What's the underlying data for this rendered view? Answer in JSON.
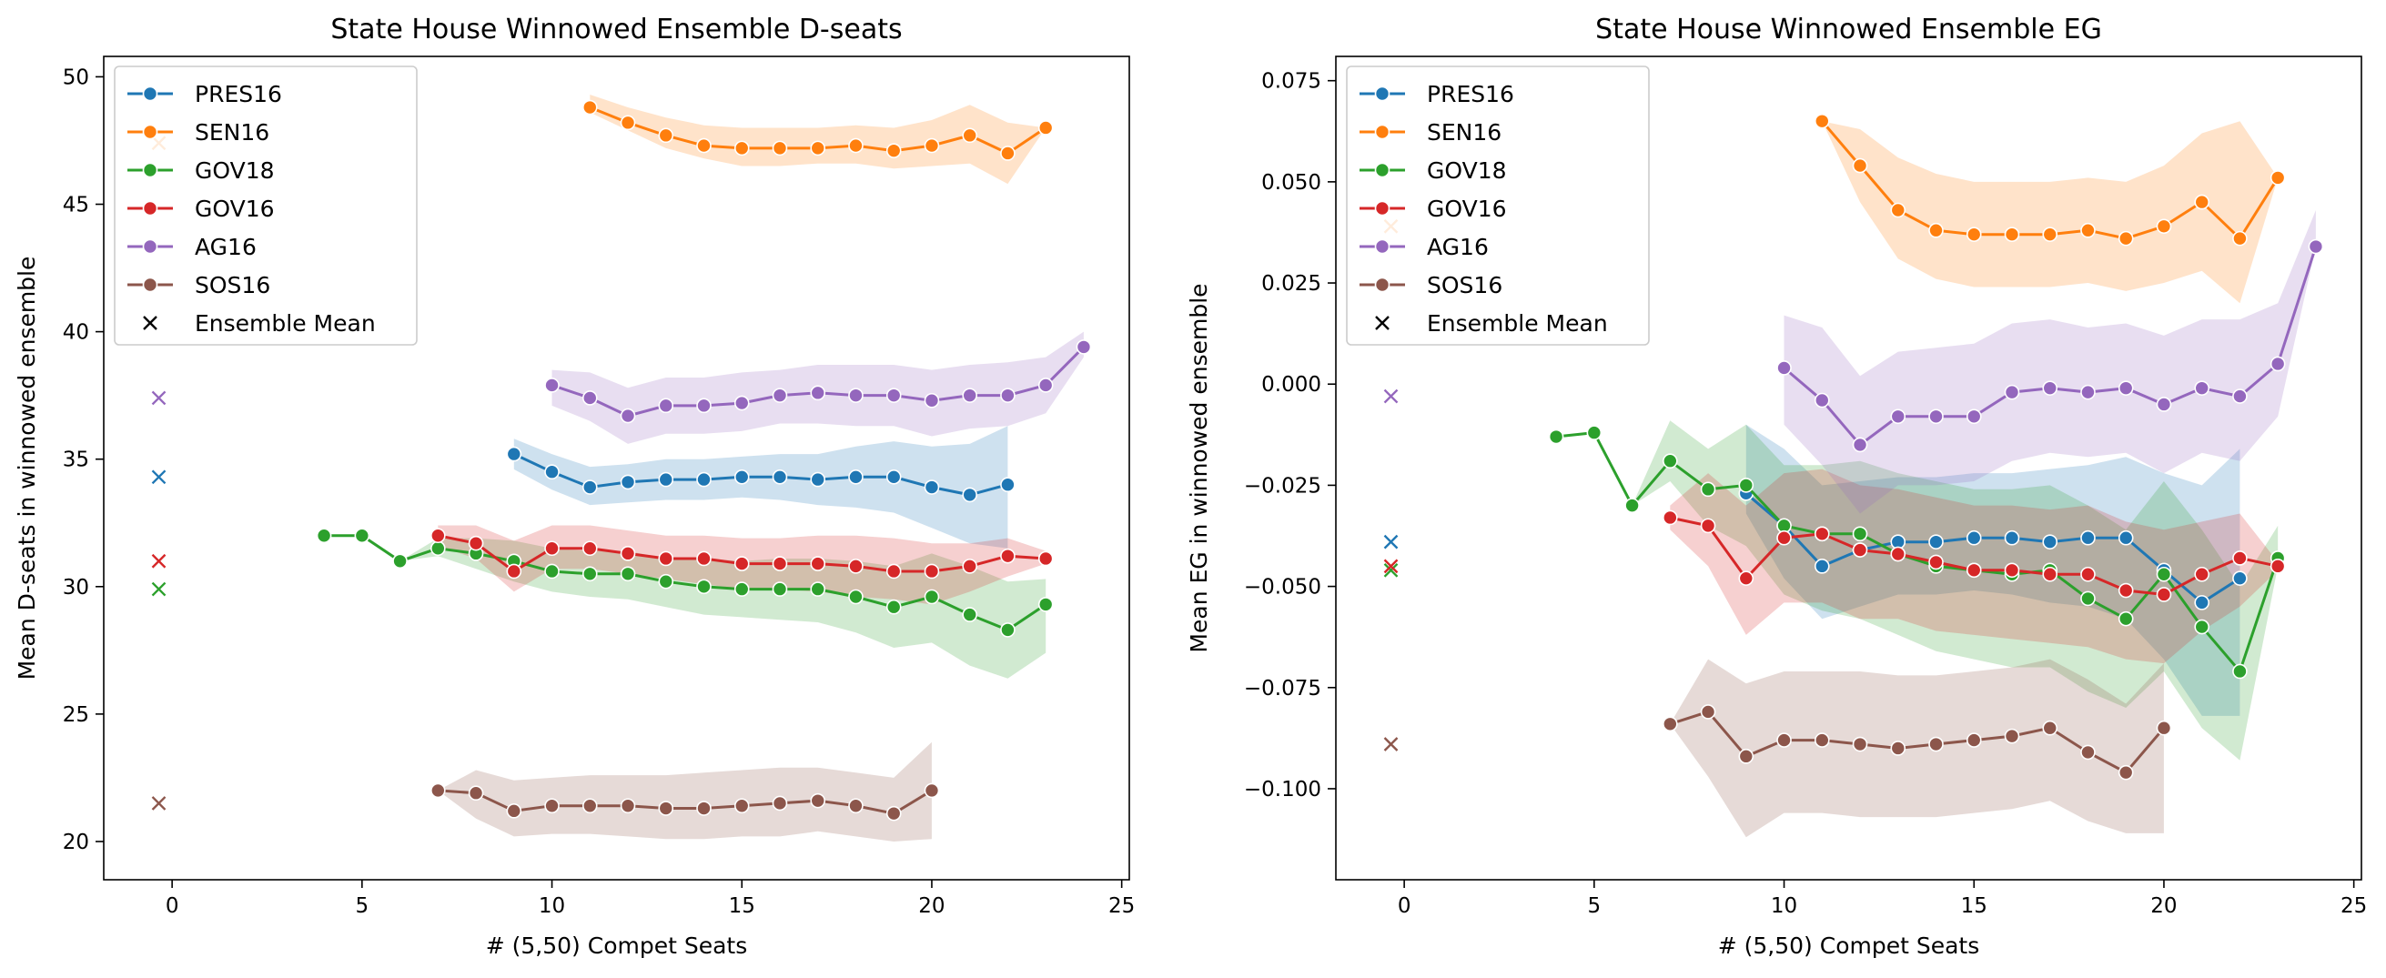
{
  "legend": {
    "ensemble_label": "Ensemble Mean"
  },
  "chart_data": [
    {
      "type": "line",
      "title": "State House Winnowed Ensemble D-seats",
      "xlabel": "# (5,50) Compet Seats",
      "ylabel": "Mean D-seats in winnowed ensemble",
      "xlim": [
        -1.8,
        25.2
      ],
      "ylim": [
        18.5,
        50.8
      ],
      "xticks": [
        "0",
        "5",
        "10",
        "15",
        "20",
        "25"
      ],
      "yticks": [
        "20",
        "25",
        "30",
        "35",
        "40",
        "45",
        "50"
      ],
      "legend_position": "upper left",
      "series": [
        {
          "name": "PRES16",
          "color": "#1f77b4",
          "x": [
            9,
            10,
            11,
            12,
            13,
            14,
            15,
            16,
            17,
            18,
            19,
            20,
            21,
            22
          ],
          "y": [
            35.2,
            34.5,
            33.9,
            34.1,
            34.2,
            34.2,
            34.3,
            34.3,
            34.2,
            34.3,
            34.3,
            33.9,
            33.6,
            34.0
          ],
          "band_lo": [
            34.6,
            33.8,
            33.2,
            33.3,
            33.4,
            33.4,
            33.5,
            33.4,
            33.2,
            33.1,
            32.9,
            32.3,
            31.7,
            31.5
          ],
          "band_hi": [
            35.8,
            35.2,
            34.7,
            34.8,
            35.0,
            35.0,
            35.1,
            35.2,
            35.2,
            35.5,
            35.7,
            35.5,
            35.6,
            36.3
          ],
          "ensemble_mean": 34.3
        },
        {
          "name": "SEN16",
          "color": "#ff7f0e",
          "x": [
            11,
            12,
            13,
            14,
            15,
            16,
            17,
            18,
            19,
            20,
            21,
            22,
            23
          ],
          "y": [
            48.8,
            48.2,
            47.7,
            47.3,
            47.2,
            47.2,
            47.2,
            47.3,
            47.1,
            47.3,
            47.7,
            47.0,
            48.0
          ],
          "band_lo": [
            48.6,
            47.9,
            47.2,
            46.8,
            46.5,
            46.5,
            46.6,
            46.6,
            46.4,
            46.5,
            46.6,
            45.8,
            48.0
          ],
          "band_hi": [
            49.3,
            48.8,
            48.4,
            48.1,
            48.0,
            48.0,
            48.0,
            48.1,
            48.0,
            48.3,
            48.9,
            48.2,
            48.0
          ],
          "ensemble_mean": 47.4
        },
        {
          "name": "GOV18",
          "color": "#2ca02c",
          "x": [
            4,
            5,
            6,
            7,
            8,
            9,
            10,
            11,
            12,
            13,
            14,
            15,
            16,
            17,
            18,
            19,
            20,
            21,
            22,
            23
          ],
          "y": [
            32.0,
            32.0,
            31.0,
            31.5,
            31.3,
            31.0,
            30.6,
            30.5,
            30.5,
            30.2,
            30.0,
            29.9,
            29.9,
            29.9,
            29.6,
            29.2,
            29.6,
            28.9,
            28.3,
            29.3
          ],
          "band_lo": [
            32.0,
            32.0,
            31.0,
            31.2,
            30.7,
            30.2,
            29.8,
            29.6,
            29.5,
            29.2,
            28.9,
            28.8,
            28.7,
            28.6,
            28.2,
            27.6,
            27.8,
            26.9,
            26.4,
            27.4
          ],
          "band_hi": [
            32.0,
            32.0,
            31.0,
            31.9,
            31.9,
            31.8,
            31.5,
            31.4,
            31.4,
            31.1,
            31.1,
            31.0,
            31.1,
            31.1,
            31.0,
            30.8,
            31.3,
            30.8,
            30.2,
            30.3
          ],
          "ensemble_mean": 29.9
        },
        {
          "name": "GOV16",
          "color": "#d62728",
          "x": [
            7,
            8,
            9,
            10,
            11,
            12,
            13,
            14,
            15,
            16,
            17,
            18,
            19,
            20,
            21,
            22,
            23
          ],
          "y": [
            32.0,
            31.7,
            30.6,
            31.5,
            31.5,
            31.3,
            31.1,
            31.1,
            30.9,
            30.9,
            30.9,
            30.8,
            30.6,
            30.6,
            30.8,
            31.2,
            31.1
          ],
          "band_lo": [
            31.6,
            31.1,
            29.8,
            30.7,
            30.7,
            30.5,
            30.3,
            30.1,
            29.9,
            29.9,
            29.8,
            29.6,
            29.5,
            29.3,
            29.8,
            30.4,
            30.9
          ],
          "band_hi": [
            32.4,
            32.4,
            31.8,
            32.4,
            32.4,
            32.2,
            32.0,
            32.0,
            31.9,
            31.9,
            32.0,
            32.0,
            31.9,
            31.7,
            31.7,
            31.9,
            31.4
          ],
          "ensemble_mean": 31.0
        },
        {
          "name": "AG16",
          "color": "#9467bd",
          "x": [
            10,
            11,
            12,
            13,
            14,
            15,
            16,
            17,
            18,
            19,
            20,
            21,
            22,
            23,
            24
          ],
          "y": [
            37.9,
            37.4,
            36.7,
            37.1,
            37.1,
            37.2,
            37.5,
            37.6,
            37.5,
            37.5,
            37.3,
            37.5,
            37.5,
            37.9,
            39.4
          ],
          "band_lo": [
            37.1,
            36.5,
            35.6,
            36.0,
            36.0,
            36.1,
            36.4,
            36.4,
            36.3,
            36.3,
            35.9,
            36.2,
            36.3,
            36.8,
            39.0
          ],
          "band_hi": [
            38.5,
            38.4,
            37.8,
            38.2,
            38.2,
            38.4,
            38.5,
            38.7,
            38.7,
            38.7,
            38.5,
            38.7,
            38.8,
            39.0,
            40.0
          ],
          "ensemble_mean": 37.4
        },
        {
          "name": "SOS16",
          "color": "#8c564b",
          "x": [
            7,
            8,
            9,
            10,
            11,
            12,
            13,
            14,
            15,
            16,
            17,
            18,
            19,
            20
          ],
          "y": [
            22.0,
            21.9,
            21.2,
            21.4,
            21.4,
            21.4,
            21.3,
            21.3,
            21.4,
            21.5,
            21.6,
            21.4,
            21.1,
            22.0
          ],
          "band_lo": [
            22.0,
            20.9,
            20.2,
            20.3,
            20.3,
            20.2,
            20.1,
            20.1,
            20.2,
            20.2,
            20.4,
            20.2,
            20.0,
            20.1
          ],
          "band_hi": [
            22.0,
            22.8,
            22.4,
            22.5,
            22.6,
            22.6,
            22.6,
            22.7,
            22.8,
            22.9,
            22.9,
            22.7,
            22.5,
            23.9
          ],
          "ensemble_mean": 21.5
        }
      ]
    },
    {
      "type": "line",
      "title": "State House Winnowed Ensemble EG",
      "xlabel": "# (5,50) Compet Seats",
      "ylabel": "Mean EG in winnowed ensemble",
      "xlim": [
        -1.8,
        25.2
      ],
      "ylim": [
        -0.1225,
        0.081
      ],
      "xticks": [
        "0",
        "5",
        "10",
        "15",
        "20",
        "25"
      ],
      "yticks": [
        "0.075",
        "0.050",
        "0.025",
        "0.000",
        "−0.025",
        "−0.050",
        "−0.075",
        "−0.100"
      ],
      "legend_position": "upper left",
      "series": [
        {
          "name": "PRES16",
          "color": "#1f77b4",
          "x": [
            9,
            10,
            11,
            12,
            13,
            14,
            15,
            16,
            17,
            18,
            19,
            20,
            21,
            22
          ],
          "y": [
            -0.027,
            -0.035,
            -0.045,
            -0.041,
            -0.039,
            -0.039,
            -0.038,
            -0.038,
            -0.039,
            -0.038,
            -0.038,
            -0.046,
            -0.054,
            -0.048
          ],
          "band_lo": [
            -0.032,
            -0.048,
            -0.058,
            -0.055,
            -0.052,
            -0.052,
            -0.051,
            -0.052,
            -0.054,
            -0.055,
            -0.058,
            -0.068,
            -0.082,
            -0.082
          ],
          "band_hi": [
            -0.01,
            -0.016,
            -0.025,
            -0.024,
            -0.023,
            -0.023,
            -0.022,
            -0.022,
            -0.021,
            -0.02,
            -0.018,
            -0.022,
            -0.025,
            -0.016
          ],
          "ensemble_mean": -0.039
        },
        {
          "name": "SEN16",
          "color": "#ff7f0e",
          "x": [
            11,
            12,
            13,
            14,
            15,
            16,
            17,
            18,
            19,
            20,
            21,
            22,
            23
          ],
          "y": [
            0.065,
            0.054,
            0.043,
            0.038,
            0.037,
            0.037,
            0.037,
            0.038,
            0.036,
            0.039,
            0.045,
            0.036,
            0.051
          ],
          "band_lo": [
            0.065,
            0.045,
            0.031,
            0.026,
            0.024,
            0.024,
            0.024,
            0.025,
            0.023,
            0.025,
            0.028,
            0.02,
            0.051
          ],
          "band_hi": [
            0.065,
            0.063,
            0.056,
            0.052,
            0.05,
            0.05,
            0.05,
            0.051,
            0.05,
            0.054,
            0.062,
            0.065,
            0.051
          ],
          "ensemble_mean": 0.039
        },
        {
          "name": "GOV18",
          "color": "#2ca02c",
          "x": [
            4,
            5,
            6,
            7,
            8,
            9,
            10,
            11,
            12,
            13,
            14,
            15,
            16,
            17,
            18,
            19,
            20,
            21,
            22,
            23
          ],
          "y": [
            -0.013,
            -0.012,
            -0.03,
            -0.019,
            -0.026,
            -0.025,
            -0.035,
            -0.037,
            -0.037,
            -0.042,
            -0.045,
            -0.046,
            -0.047,
            -0.046,
            -0.053,
            -0.058,
            -0.047,
            -0.06,
            -0.071,
            -0.043
          ],
          "band_lo": [
            -0.013,
            -0.012,
            -0.03,
            -0.024,
            -0.035,
            -0.04,
            -0.052,
            -0.056,
            -0.058,
            -0.062,
            -0.066,
            -0.068,
            -0.07,
            -0.07,
            -0.076,
            -0.08,
            -0.071,
            -0.085,
            -0.093,
            -0.045
          ],
          "band_hi": [
            -0.013,
            -0.012,
            -0.03,
            -0.009,
            -0.016,
            -0.01,
            -0.02,
            -0.02,
            -0.019,
            -0.022,
            -0.024,
            -0.026,
            -0.026,
            -0.025,
            -0.03,
            -0.036,
            -0.024,
            -0.036,
            -0.05,
            -0.035
          ],
          "ensemble_mean": -0.046
        },
        {
          "name": "GOV16",
          "color": "#d62728",
          "x": [
            7,
            8,
            9,
            10,
            11,
            12,
            13,
            14,
            15,
            16,
            17,
            18,
            19,
            20,
            21,
            22,
            23
          ],
          "y": [
            -0.033,
            -0.035,
            -0.048,
            -0.038,
            -0.037,
            -0.041,
            -0.042,
            -0.044,
            -0.046,
            -0.046,
            -0.047,
            -0.047,
            -0.051,
            -0.052,
            -0.047,
            -0.043,
            -0.045
          ],
          "band_lo": [
            -0.036,
            -0.045,
            -0.062,
            -0.054,
            -0.054,
            -0.058,
            -0.058,
            -0.061,
            -0.062,
            -0.063,
            -0.064,
            -0.065,
            -0.068,
            -0.069,
            -0.061,
            -0.055,
            -0.046
          ],
          "band_hi": [
            -0.03,
            -0.022,
            -0.03,
            -0.022,
            -0.021,
            -0.025,
            -0.026,
            -0.028,
            -0.03,
            -0.03,
            -0.031,
            -0.03,
            -0.034,
            -0.036,
            -0.034,
            -0.032,
            -0.044
          ],
          "ensemble_mean": -0.045
        },
        {
          "name": "AG16",
          "color": "#9467bd",
          "x": [
            10,
            11,
            12,
            13,
            14,
            15,
            16,
            17,
            18,
            19,
            20,
            21,
            22,
            23,
            24
          ],
          "y": [
            0.004,
            -0.004,
            -0.015,
            -0.008,
            -0.008,
            -0.008,
            -0.002,
            -0.001,
            -0.002,
            -0.001,
            -0.005,
            -0.001,
            -0.003,
            0.005,
            0.034
          ],
          "band_lo": [
            -0.01,
            -0.02,
            -0.032,
            -0.025,
            -0.025,
            -0.024,
            -0.019,
            -0.017,
            -0.018,
            -0.017,
            -0.022,
            -0.017,
            -0.019,
            -0.008,
            0.034
          ],
          "band_hi": [
            0.017,
            0.014,
            0.002,
            0.008,
            0.009,
            0.01,
            0.015,
            0.016,
            0.014,
            0.015,
            0.012,
            0.016,
            0.016,
            0.02,
            0.043
          ],
          "ensemble_mean": -0.003
        },
        {
          "name": "SOS16",
          "color": "#8c564b",
          "x": [
            7,
            8,
            9,
            10,
            11,
            12,
            13,
            14,
            15,
            16,
            17,
            18,
            19,
            20
          ],
          "y": [
            -0.084,
            -0.081,
            -0.092,
            -0.088,
            -0.088,
            -0.089,
            -0.09,
            -0.089,
            -0.088,
            -0.087,
            -0.085,
            -0.091,
            -0.096,
            -0.085
          ],
          "band_lo": [
            -0.084,
            -0.097,
            -0.112,
            -0.106,
            -0.106,
            -0.107,
            -0.107,
            -0.107,
            -0.106,
            -0.105,
            -0.103,
            -0.108,
            -0.111,
            -0.111
          ],
          "band_hi": [
            -0.084,
            -0.068,
            -0.074,
            -0.071,
            -0.071,
            -0.071,
            -0.072,
            -0.072,
            -0.071,
            -0.07,
            -0.068,
            -0.073,
            -0.079,
            -0.069
          ],
          "ensemble_mean": -0.089
        }
      ]
    }
  ]
}
